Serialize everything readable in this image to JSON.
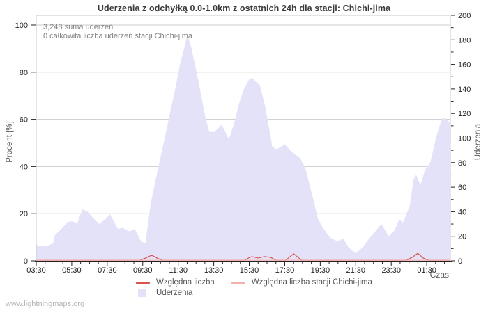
{
  "page": {
    "watermark": "www.lightningmaps.org"
  },
  "chart_data": {
    "type": "area",
    "title": "Uderzenia z odchyłką 0.0-1.0km z ostatnich 24h dla stacji: Chichi-jima",
    "xlabel": "Czas",
    "ylabel_left": "Procent  [%]",
    "ylabel_right": "Uderzenia",
    "ylim_left": [
      0,
      100
    ],
    "ylim_right": [
      0,
      200
    ],
    "x_span_hours": 23.33,
    "grid": true,
    "legend_position": "bottom",
    "annotations": [
      "3,248 suma uderzeń",
      "0 całkowita liczba uderzeń stacji Chichi-jima"
    ],
    "x_ticks": [
      {
        "t": 0,
        "label": "03:30"
      },
      {
        "t": 2,
        "label": "05:30"
      },
      {
        "t": 4,
        "label": "07:30"
      },
      {
        "t": 6,
        "label": "09:30"
      },
      {
        "t": 8,
        "label": "11:30"
      },
      {
        "t": 10,
        "label": "13:30"
      },
      {
        "t": 12,
        "label": "15:30"
      },
      {
        "t": 14,
        "label": "17:30"
      },
      {
        "t": 16,
        "label": "19:30"
      },
      {
        "t": 18,
        "label": "21:30"
      },
      {
        "t": 20,
        "label": "23:30"
      },
      {
        "t": 22,
        "label": "01:30"
      }
    ],
    "x_minor_step": 0.5,
    "y_ticks_left": [
      0,
      20,
      40,
      60,
      80,
      100
    ],
    "y_ticks_right_major": [
      0,
      20,
      40,
      60,
      80,
      100,
      120,
      140,
      160,
      180,
      200
    ],
    "y_right_minor_step": 10,
    "legend": [
      {
        "label": "Względna liczba",
        "type": "line",
        "color": "#d9534f"
      },
      {
        "label": "Względna liczba stacji Chichi-jima",
        "type": "line",
        "color": "#f4b0ac"
      },
      {
        "label": "Uderzenia",
        "type": "area",
        "color": "#e4e2f8"
      }
    ],
    "series": [
      {
        "name": "Uderzenia",
        "axis": "right",
        "type": "area",
        "color": "#e4e2f8",
        "points": [
          [
            0,
            13
          ],
          [
            0.3,
            12
          ],
          [
            0.6,
            12
          ],
          [
            0.75,
            13
          ],
          [
            0.95,
            14
          ],
          [
            1.05,
            21
          ],
          [
            1.35,
            25
          ],
          [
            1.8,
            32
          ],
          [
            2.1,
            32
          ],
          [
            2.3,
            30
          ],
          [
            2.6,
            42
          ],
          [
            2.9,
            40
          ],
          [
            3.2,
            35
          ],
          [
            3.55,
            30
          ],
          [
            3.9,
            34
          ],
          [
            4.15,
            38
          ],
          [
            4.6,
            26
          ],
          [
            4.85,
            27
          ],
          [
            5.25,
            24
          ],
          [
            5.55,
            26
          ],
          [
            5.9,
            16
          ],
          [
            6.15,
            14
          ],
          [
            6.45,
            47
          ],
          [
            6.8,
            71
          ],
          [
            7.1,
            91
          ],
          [
            7.4,
            111
          ],
          [
            7.6,
            125
          ],
          [
            7.8,
            138
          ],
          [
            8.1,
            160
          ],
          [
            8.4,
            177
          ],
          [
            8.5,
            184
          ],
          [
            8.7,
            176
          ],
          [
            9.0,
            156
          ],
          [
            9.25,
            138
          ],
          [
            9.5,
            119
          ],
          [
            9.75,
            105
          ],
          [
            10.05,
            105
          ],
          [
            10.25,
            108
          ],
          [
            10.45,
            111
          ],
          [
            10.65,
            105
          ],
          [
            10.85,
            99
          ],
          [
            11.15,
            112
          ],
          [
            11.4,
            127
          ],
          [
            11.7,
            140
          ],
          [
            12.0,
            148
          ],
          [
            12.2,
            149
          ],
          [
            12.35,
            146
          ],
          [
            12.6,
            143
          ],
          [
            12.9,
            126
          ],
          [
            13.3,
            93
          ],
          [
            13.5,
            91
          ],
          [
            13.7,
            92
          ],
          [
            14.0,
            95
          ],
          [
            14.25,
            91
          ],
          [
            14.45,
            88
          ],
          [
            14.85,
            84
          ],
          [
            15.15,
            76
          ],
          [
            15.45,
            59
          ],
          [
            15.65,
            48
          ],
          [
            15.85,
            35
          ],
          [
            16.1,
            28
          ],
          [
            16.55,
            19
          ],
          [
            16.95,
            16
          ],
          [
            17.3,
            18
          ],
          [
            17.6,
            11
          ],
          [
            18.0,
            6
          ],
          [
            18.4,
            11
          ],
          [
            18.7,
            17
          ],
          [
            19.1,
            24
          ],
          [
            19.45,
            30
          ],
          [
            19.85,
            20
          ],
          [
            20.2,
            25
          ],
          [
            20.45,
            34
          ],
          [
            20.65,
            31
          ],
          [
            20.85,
            38
          ],
          [
            21.05,
            45
          ],
          [
            21.25,
            66
          ],
          [
            21.4,
            70
          ],
          [
            21.65,
            62
          ],
          [
            21.9,
            74
          ],
          [
            22.2,
            80
          ],
          [
            22.5,
            99
          ],
          [
            22.7,
            109
          ],
          [
            22.9,
            117
          ],
          [
            23.1,
            115
          ],
          [
            23.33,
            112
          ]
        ]
      },
      {
        "name": "Względna liczba",
        "axis": "left",
        "type": "line",
        "color": "#d9534f",
        "points": [
          [
            0,
            0
          ],
          [
            5.85,
            0
          ],
          [
            6.2,
            1.3
          ],
          [
            6.5,
            2.4
          ],
          [
            6.8,
            1.2
          ],
          [
            7.1,
            0
          ],
          [
            11.75,
            0
          ],
          [
            12.0,
            1.4
          ],
          [
            12.15,
            1.8
          ],
          [
            12.5,
            1.2
          ],
          [
            12.85,
            1.8
          ],
          [
            13.2,
            1.5
          ],
          [
            13.5,
            0.3
          ],
          [
            13.6,
            0
          ],
          [
            14.05,
            0
          ],
          [
            14.5,
            3.0
          ],
          [
            14.95,
            0
          ],
          [
            20.85,
            0
          ],
          [
            21.2,
            1.6
          ],
          [
            21.5,
            3.2
          ],
          [
            21.8,
            1.2
          ],
          [
            22.1,
            0
          ],
          [
            23.33,
            0
          ]
        ]
      },
      {
        "name": "Względna liczba stacji Chichi-jima",
        "axis": "left",
        "type": "line",
        "color": "#f4b0ac",
        "points": [
          [
            0,
            0
          ],
          [
            23.33,
            0
          ]
        ]
      }
    ]
  }
}
